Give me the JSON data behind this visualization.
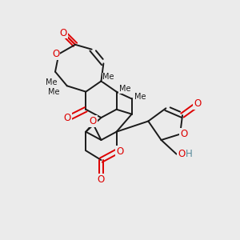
{
  "background_color": "#ebebeb",
  "bond_color": "#1a1a1a",
  "bond_width": 1.4,
  "O_color": "#dd0000",
  "H_color": "#558899",
  "figsize": [
    3.0,
    3.0
  ],
  "dpi": 100,
  "xlim": [
    0,
    10
  ],
  "ylim": [
    0,
    10
  ]
}
